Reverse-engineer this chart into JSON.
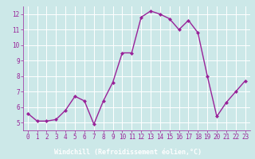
{
  "x": [
    0,
    1,
    2,
    3,
    4,
    5,
    6,
    7,
    8,
    9,
    10,
    11,
    12,
    13,
    14,
    15,
    16,
    17,
    18,
    19,
    20,
    21,
    22,
    23
  ],
  "y": [
    5.6,
    5.1,
    5.1,
    5.2,
    5.8,
    6.7,
    6.4,
    4.9,
    6.4,
    7.6,
    9.5,
    9.5,
    11.8,
    12.2,
    12.0,
    11.7,
    11.0,
    11.6,
    10.8,
    8.0,
    5.4,
    6.3,
    7.0,
    7.7
  ],
  "xlabel": "Windchill (Refroidissement éolien,°C)",
  "ylim": [
    4.5,
    12.5
  ],
  "xlim": [
    -0.5,
    23.5
  ],
  "yticks": [
    5,
    6,
    7,
    8,
    9,
    10,
    11,
    12
  ],
  "xticks": [
    0,
    1,
    2,
    3,
    4,
    5,
    6,
    7,
    8,
    9,
    10,
    11,
    12,
    13,
    14,
    15,
    16,
    17,
    18,
    19,
    20,
    21,
    22,
    23
  ],
  "line_color": "#992299",
  "marker_color": "#992299",
  "bg_color": "#cce8e8",
  "grid_color": "#ffffff",
  "tick_label_color": "#992299",
  "xlabel_color": "#ffffff",
  "xlabel_bg": "#7700aa",
  "font_family": "monospace",
  "tick_fontsize": 5.5,
  "xlabel_fontsize": 6.0
}
